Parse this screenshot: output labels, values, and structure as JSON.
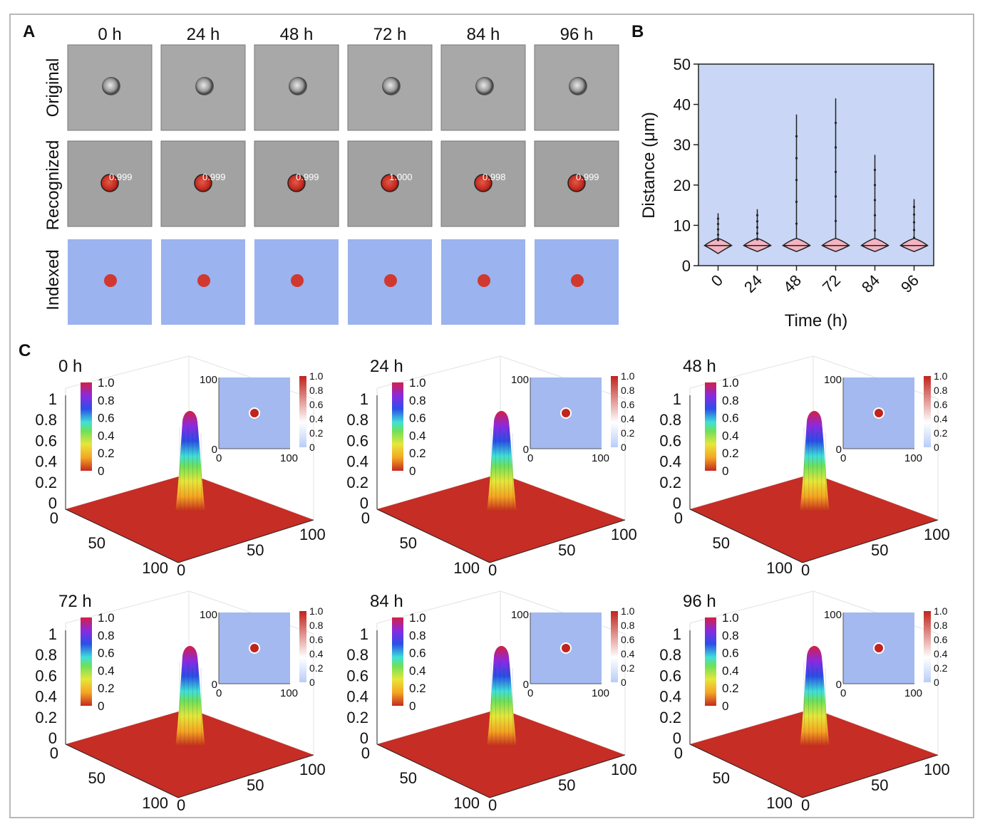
{
  "panels": {
    "A": "A",
    "B": "B",
    "C": "C"
  },
  "panel_a": {
    "time_labels": [
      "0 h",
      "24 h",
      "48 h",
      "72 h",
      "84 h",
      "96 h"
    ],
    "row_labels": [
      "Original",
      "Recognized",
      "Indexed"
    ],
    "scores": [
      "0.999",
      "0.999",
      "0.999",
      "1.000",
      "0.998",
      "0.999"
    ],
    "colors": {
      "indexed_bg": "#9bb3ee",
      "cell": "#d1382f",
      "micrograph": "#a9a9a9"
    }
  },
  "chart_data": [
    {
      "type": "violin",
      "panel": "B",
      "categories": [
        "0",
        "24",
        "48",
        "72",
        "84",
        "96"
      ],
      "xlabel": "Time (h)",
      "ylabel": "Distance (μm)",
      "ylim": [
        0,
        50
      ],
      "yticks": [
        "0",
        "10",
        "20",
        "30",
        "40",
        "50"
      ],
      "median": [
        5,
        5,
        5,
        5,
        5,
        5
      ],
      "max": [
        13,
        14,
        37.5,
        41.5,
        27.5,
        16.5
      ],
      "min": [
        3,
        3.5,
        3.5,
        3.5,
        3.5,
        3.5
      ],
      "background": "#c9d6f5"
    },
    {
      "type": "surface",
      "panel": "C",
      "titles": [
        "0 h",
        "24 h",
        "48 h",
        "72 h",
        "84 h",
        "96 h"
      ],
      "x_range": [
        0,
        100
      ],
      "y_range": [
        0,
        100
      ],
      "z_range": [
        0,
        1
      ],
      "x_ticks": [
        "0",
        "50",
        "100"
      ],
      "y_ticks": [
        "0",
        "50",
        "100"
      ],
      "z_ticks": [
        "0",
        "0.2",
        "0.4",
        "0.6",
        "0.8",
        "1"
      ],
      "peak_value": [
        1,
        1,
        1,
        1,
        1,
        1
      ],
      "colorbar_ticks": [
        "1.0",
        "0.8",
        "0.6",
        "0.4",
        "0.2",
        "0"
      ],
      "inset": {
        "x_ticks": [
          "0",
          "100"
        ],
        "y_ticks": [
          "100",
          "0"
        ],
        "colorbar_ticks": [
          "1.0",
          "0.8",
          "0.6",
          "0.4",
          "0.2",
          "0"
        ]
      },
      "colors": {
        "floor": "#c62d25",
        "inset_bg": "#a3b9ef"
      }
    }
  ]
}
